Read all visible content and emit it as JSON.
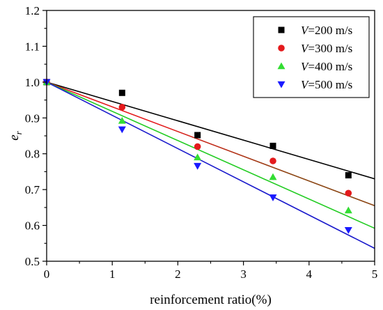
{
  "chart_data": {
    "type": "scatter",
    "title": "",
    "xlabel": "reinforcement ratio(%)",
    "ylabel_main": "e",
    "ylabel_sub": "r",
    "xlim": [
      0,
      5
    ],
    "ylim": [
      0.5,
      1.2
    ],
    "xticks": [
      0,
      1,
      2,
      3,
      4,
      5
    ],
    "yticks": [
      0.5,
      0.6,
      0.7,
      0.8,
      0.9,
      1.0,
      1.1,
      1.2
    ],
    "ytick_labels": [
      "0.5",
      "0.6",
      "0.7",
      "0.8",
      "0.9",
      "1.0",
      "1.1",
      "1.2"
    ],
    "legend_position": "top-right",
    "grid": false,
    "series": [
      {
        "name_var": "V",
        "name_rest": "=200 m/s",
        "marker": "square",
        "color": "#000000",
        "line_color": "#000000",
        "x": [
          0,
          1.15,
          2.3,
          3.45,
          4.6
        ],
        "y": [
          1.0,
          0.97,
          0.852,
          0.822,
          0.74
        ],
        "fit": [
          [
            0,
            1.0
          ],
          [
            5,
            0.73
          ]
        ]
      },
      {
        "name_var": "V",
        "name_rest": "=300 m/s",
        "marker": "circle",
        "color": "#e41a1c",
        "line_color": "#e41a1c",
        "line_color_end": "#8b4513",
        "x": [
          0,
          1.15,
          2.3,
          3.45,
          4.6
        ],
        "y": [
          1.0,
          0.93,
          0.82,
          0.78,
          0.69
        ],
        "fit": [
          [
            0,
            1.0
          ],
          [
            5,
            0.655
          ]
        ]
      },
      {
        "name_var": "V",
        "name_rest": "=400 m/s",
        "marker": "triangle-up",
        "color": "#33dd33",
        "line_color": "#22cc22",
        "x": [
          0,
          1.15,
          2.3,
          3.45,
          4.6
        ],
        "y": [
          1.0,
          0.892,
          0.79,
          0.735,
          0.642
        ],
        "fit": [
          [
            0,
            1.0
          ],
          [
            5,
            0.592
          ]
        ]
      },
      {
        "name_var": "V",
        "name_rest": "=500 m/s",
        "marker": "triangle-down",
        "color": "#1a1aff",
        "line_color": "#1a1acc",
        "x": [
          0,
          1.15,
          2.3,
          3.45,
          4.6
        ],
        "y": [
          1.0,
          0.868,
          0.766,
          0.678,
          0.587
        ],
        "fit": [
          [
            0,
            1.0
          ],
          [
            5,
            0.536
          ]
        ]
      }
    ]
  }
}
